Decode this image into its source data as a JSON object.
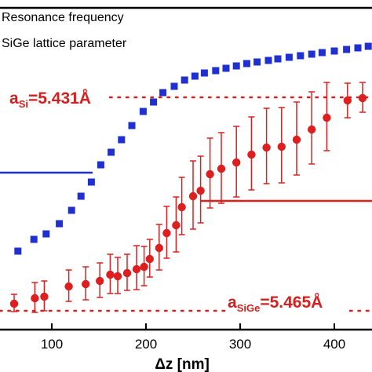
{
  "chart_data": {
    "type": "scatter",
    "xlabel": "Δz [nm]",
    "xticks": [
      100,
      200,
      300,
      400
    ],
    "xlim": [
      5,
      440
    ],
    "legend": {
      "placement": "top-left",
      "entries": [
        "Resonance frequency",
        "SiGe lattice parameter"
      ]
    },
    "annotations": [
      {
        "base": "a",
        "sub": "Si",
        "rest": "=5.431Å",
        "color": "#d42020"
      },
      {
        "base": "a",
        "sub": "SiGe",
        "rest": "=5.465Å",
        "color": "#d42020"
      }
    ],
    "series": [
      {
        "name": "Resonance frequency",
        "marker": "square",
        "color": "#1f2fd0",
        "x": [
          64,
          81,
          94,
          108,
          121,
          131,
          142,
          152,
          163,
          174,
          185,
          197,
          208,
          218,
          230,
          241,
          252,
          262,
          274,
          285,
          296,
          307,
          318,
          330,
          340,
          352,
          364,
          376,
          387,
          400,
          413,
          425,
          436
        ],
        "y": [
          320,
          305,
          298,
          285,
          268,
          250,
          232,
          210,
          194,
          178,
          160,
          142,
          130,
          118,
          110,
          102,
          97,
          93,
          90,
          87,
          84,
          81,
          79,
          77,
          75,
          73,
          71,
          69,
          67,
          65,
          63,
          61,
          59
        ]
      },
      {
        "name": "SiGe lattice parameter",
        "marker": "circle",
        "color": "#dd1f1f",
        "x": [
          60,
          82,
          92,
          118,
          136,
          151,
          162,
          170,
          180,
          190,
          198,
          204,
          214,
          222,
          232,
          238,
          250,
          258,
          268,
          280,
          296,
          312,
          328,
          344,
          360,
          376,
          392,
          414,
          430
        ],
        "y": [
          387,
          380,
          378,
          365,
          362,
          358,
          350,
          352,
          348,
          343,
          340,
          330,
          316,
          297,
          287,
          264,
          250,
          243,
          222,
          215,
          207,
          197,
          188,
          187,
          178,
          165,
          150,
          128,
          125
        ],
        "err_up": [
          12,
          20,
          20,
          21,
          22,
          23,
          26,
          24,
          24,
          30,
          26,
          25,
          30,
          34,
          36,
          38,
          45,
          44,
          46,
          46,
          46,
          48,
          50,
          50,
          48,
          48,
          45,
          22,
          20
        ],
        "err_down": [
          10,
          18,
          18,
          19,
          20,
          21,
          24,
          22,
          22,
          26,
          24,
          23,
          28,
          32,
          34,
          35,
          42,
          41,
          43,
          44,
          44,
          45,
          46,
          46,
          45,
          44,
          42,
          22,
          18
        ]
      }
    ]
  }
}
